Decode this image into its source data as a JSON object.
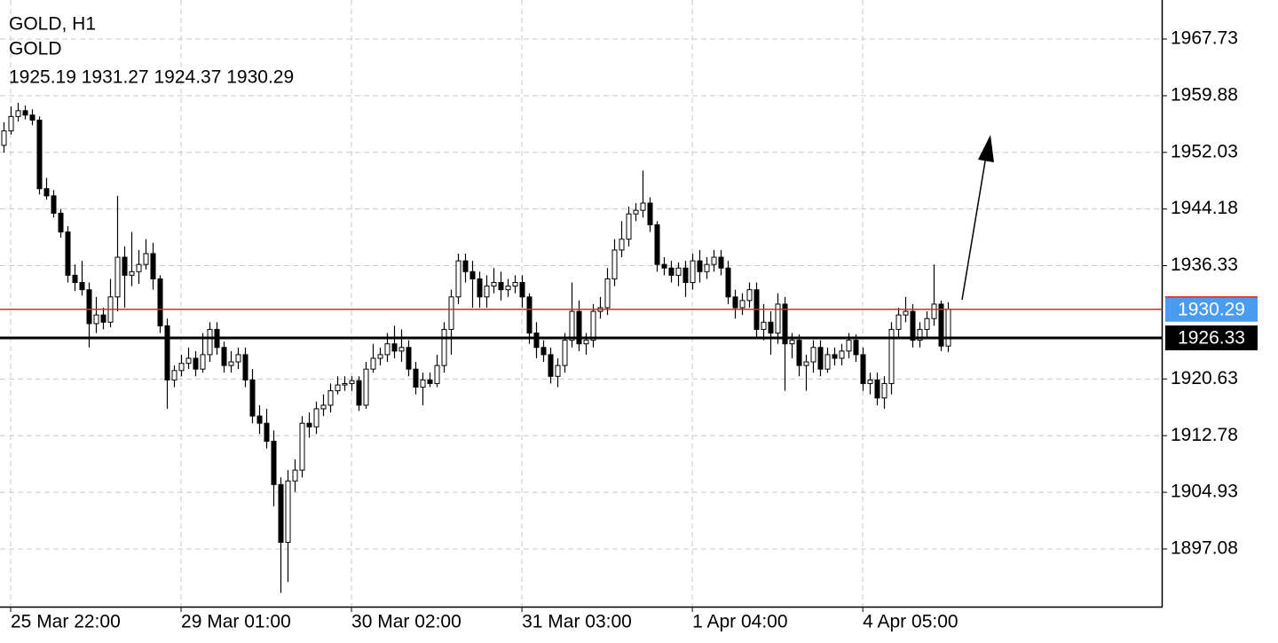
{
  "chart_data": {
    "type": "candlestick",
    "title": "GOLD, H1",
    "subtitle": "GOLD",
    "ohlc_label": "1925.19 1931.27 1924.37 1930.29",
    "open": [
      1953.0,
      1955.0,
      1957.0,
      1957.8,
      1957.2,
      1956.5,
      1947.0,
      1946.0,
      1943.6,
      1941.0,
      1935.0,
      1934.0,
      1933.0,
      1928.3,
      1929.5,
      1928.5,
      1932.0,
      1937.5,
      1935.0,
      1935.5,
      1936.5,
      1938.0,
      1934.5,
      1928.0,
      1920.5,
      1921.8,
      1922.8,
      1923.5,
      1922.0,
      1924.0,
      1927.5,
      1925.0,
      1922.5,
      1923.0,
      1924.0,
      1920.5,
      1915.5,
      1914.5,
      1912.0,
      1906.0,
      1898.0,
      1906.5,
      1908.0,
      1914.5,
      1914.0,
      1916.5,
      1917.0,
      1919.0,
      1919.8,
      1920.0,
      1920.4,
      1917.0,
      1922.0,
      1923.5,
      1924.0,
      1925.5,
      1924.5,
      1925.0,
      1922.0,
      1919.5,
      1920.5,
      1920.0,
      1922.5,
      1927.5,
      1932.0,
      1937.0,
      1935.5,
      1934.5,
      1932.0,
      1933.5,
      1934.0,
      1933.0,
      1933.5,
      1934.0,
      1932.0,
      1927.0,
      1925.0,
      1924.0,
      1921.0,
      1922.5,
      1926.0,
      1930.0,
      1925.5,
      1926.0,
      1930.0,
      1930.5,
      1934.5,
      1938.5,
      1940.0,
      1943.5,
      1944.0,
      1945.0,
      1942.0,
      1936.5,
      1936.0,
      1935.0,
      1936.0,
      1934.0,
      1937.0,
      1935.5,
      1936.5,
      1937.5,
      1936.0,
      1932.0,
      1930.5,
      1931.5,
      1933.0,
      1927.5,
      1928.5,
      1927.0,
      1931.0,
      1925.5,
      1926.0,
      1922.5,
      1923.0,
      1925.0,
      1922.0,
      1924.0,
      1923.5,
      1924.5,
      1926.0,
      1924.0,
      1920.0,
      1920.5,
      1918.0,
      1920.0,
      1927.5,
      1929.5,
      1930.0,
      1926.0,
      1927.5,
      1929.0,
      1931.0,
      1925.19
    ],
    "high": [
      1956.2,
      1958.4,
      1958.9,
      1958.5,
      1958.0,
      1957.0,
      1948.5,
      1946.8,
      1944.2,
      1941.8,
      1936.5,
      1937.0,
      1934.0,
      1932.0,
      1930.5,
      1934.5,
      1946.0,
      1939.0,
      1941.0,
      1938.5,
      1940.0,
      1939.5,
      1935.0,
      1929.0,
      1922.5,
      1924.0,
      1925.0,
      1924.5,
      1927.0,
      1928.5,
      1928.5,
      1925.8,
      1924.5,
      1925.0,
      1925.0,
      1922.0,
      1917.0,
      1916.5,
      1913.5,
      1907.0,
      1908.0,
      1909.5,
      1915.5,
      1916.0,
      1917.5,
      1918.5,
      1920.0,
      1921.0,
      1921.0,
      1921.0,
      1921.0,
      1923.0,
      1925.5,
      1925.0,
      1927.0,
      1928.0,
      1927.5,
      1926.0,
      1923.0,
      1921.5,
      1921.5,
      1924.0,
      1928.5,
      1933.0,
      1938.0,
      1938.0,
      1937.0,
      1935.5,
      1935.0,
      1936.0,
      1935.5,
      1934.5,
      1935.0,
      1935.0,
      1932.5,
      1928.5,
      1926.0,
      1925.0,
      1923.5,
      1927.0,
      1934.0,
      1931.5,
      1927.0,
      1931.0,
      1932.0,
      1936.0,
      1940.0,
      1942.5,
      1944.5,
      1945.0,
      1949.5,
      1945.8,
      1942.5,
      1937.5,
      1937.0,
      1936.8,
      1937.0,
      1938.0,
      1938.5,
      1937.5,
      1938.5,
      1938.5,
      1937.0,
      1933.0,
      1932.5,
      1934.0,
      1934.0,
      1931.0,
      1930.0,
      1932.5,
      1932.0,
      1927.0,
      1926.8,
      1924.0,
      1926.0,
      1926.0,
      1925.0,
      1925.0,
      1925.5,
      1927.0,
      1926.8,
      1925.0,
      1921.5,
      1921.5,
      1921.0,
      1928.5,
      1930.5,
      1932.0,
      1931.0,
      1928.5,
      1930.0,
      1936.5,
      1931.5,
      1931.27
    ],
    "low": [
      1952.0,
      1954.5,
      1956.3,
      1956.6,
      1955.8,
      1946.2,
      1945.5,
      1943.0,
      1940.2,
      1934.0,
      1932.8,
      1932.2,
      1925.0,
      1927.0,
      1927.5,
      1927.8,
      1930.0,
      1930.5,
      1933.5,
      1933.8,
      1935.8,
      1933.0,
      1927.0,
      1916.5,
      1919.5,
      1921.0,
      1922.0,
      1921.0,
      1921.5,
      1923.0,
      1924.0,
      1921.5,
      1921.5,
      1922.0,
      1919.5,
      1914.5,
      1913.0,
      1911.0,
      1903.0,
      1891.0,
      1892.5,
      1905.0,
      1907.0,
      1912.5,
      1913.0,
      1915.5,
      1916.0,
      1918.5,
      1919.0,
      1919.0,
      1916.2,
      1916.5,
      1921.5,
      1922.5,
      1923.0,
      1923.5,
      1923.0,
      1921.0,
      1918.5,
      1917.0,
      1919.5,
      1919.5,
      1921.5,
      1924.0,
      1931.0,
      1934.0,
      1930.5,
      1930.5,
      1930.5,
      1932.5,
      1931.5,
      1932.0,
      1932.5,
      1930.5,
      1925.5,
      1923.5,
      1923.0,
      1920.0,
      1919.5,
      1921.5,
      1925.0,
      1924.5,
      1924.0,
      1925.0,
      1929.0,
      1929.5,
      1933.5,
      1937.5,
      1939.0,
      1942.5,
      1943.0,
      1941.0,
      1935.5,
      1935.0,
      1934.0,
      1933.5,
      1932.0,
      1933.0,
      1934.0,
      1934.5,
      1935.5,
      1935.0,
      1931.0,
      1929.0,
      1929.5,
      1930.5,
      1926.5,
      1926.0,
      1924.0,
      1925.5,
      1919.0,
      1923.5,
      1921.0,
      1919.0,
      1921.5,
      1921.0,
      1921.5,
      1922.5,
      1922.5,
      1923.5,
      1923.0,
      1919.0,
      1918.5,
      1917.0,
      1916.5,
      1918.5,
      1926.5,
      1928.5,
      1925.0,
      1925.0,
      1926.5,
      1928.0,
      1924.5,
      1924.37
    ],
    "close": [
      1955.0,
      1957.0,
      1957.8,
      1957.2,
      1956.5,
      1947.0,
      1946.0,
      1943.6,
      1941.0,
      1935.0,
      1934.0,
      1933.0,
      1928.3,
      1929.5,
      1928.5,
      1932.0,
      1937.5,
      1935.0,
      1935.5,
      1936.5,
      1938.0,
      1934.5,
      1928.0,
      1920.5,
      1921.8,
      1922.8,
      1923.5,
      1922.0,
      1924.0,
      1927.5,
      1925.0,
      1922.5,
      1923.0,
      1924.0,
      1920.5,
      1915.5,
      1914.5,
      1912.0,
      1906.0,
      1898.0,
      1906.5,
      1908.0,
      1914.5,
      1914.0,
      1916.5,
      1917.0,
      1919.0,
      1919.8,
      1920.0,
      1920.4,
      1917.0,
      1922.0,
      1923.5,
      1924.0,
      1925.5,
      1924.5,
      1925.0,
      1922.0,
      1919.5,
      1920.5,
      1920.0,
      1922.5,
      1927.5,
      1932.0,
      1937.0,
      1935.5,
      1934.5,
      1932.0,
      1933.5,
      1934.0,
      1933.0,
      1933.5,
      1934.0,
      1932.0,
      1927.0,
      1925.0,
      1924.0,
      1921.0,
      1922.5,
      1926.0,
      1930.0,
      1925.5,
      1926.0,
      1930.0,
      1930.5,
      1934.5,
      1938.5,
      1940.0,
      1943.5,
      1944.0,
      1945.0,
      1942.0,
      1936.5,
      1936.0,
      1935.0,
      1936.0,
      1934.0,
      1937.0,
      1935.5,
      1936.5,
      1937.5,
      1936.0,
      1932.0,
      1930.5,
      1931.5,
      1933.0,
      1927.5,
      1928.5,
      1927.0,
      1931.0,
      1925.5,
      1926.0,
      1922.5,
      1923.0,
      1925.0,
      1922.0,
      1924.0,
      1923.5,
      1924.5,
      1926.0,
      1924.0,
      1920.0,
      1920.5,
      1918.0,
      1920.0,
      1927.5,
      1929.5,
      1930.0,
      1926.0,
      1927.5,
      1929.0,
      1931.0,
      1925.19,
      1930.29
    ],
    "bull_color": "#ffffff",
    "bear_color": "#000000",
    "xlim": [
      -0.5,
      163.1
    ],
    "xticks": [
      {
        "value": 1,
        "label": "25 Mar 22:00"
      },
      {
        "value": 25,
        "label": "29 Mar 01:00"
      },
      {
        "value": 49,
        "label": "30 Mar 02:00"
      },
      {
        "value": 73,
        "label": "31 Mar 03:00"
      },
      {
        "value": 97,
        "label": "1 Apr 04:00"
      },
      {
        "value": 121,
        "label": "4 Apr 05:00"
      }
    ],
    "ylim": [
      1889.09,
      1973.14
    ],
    "yticks": [
      1967.73,
      1959.88,
      1952.03,
      1944.18,
      1936.33,
      1920.63,
      1912.78,
      1904.93,
      1897.08
    ],
    "grid": true,
    "bid_line": {
      "value": 1930.29,
      "color": "#e0282e",
      "label_color": "#4a9cf0"
    },
    "hline": {
      "value": 1926.33,
      "color": "#000000"
    }
  }
}
